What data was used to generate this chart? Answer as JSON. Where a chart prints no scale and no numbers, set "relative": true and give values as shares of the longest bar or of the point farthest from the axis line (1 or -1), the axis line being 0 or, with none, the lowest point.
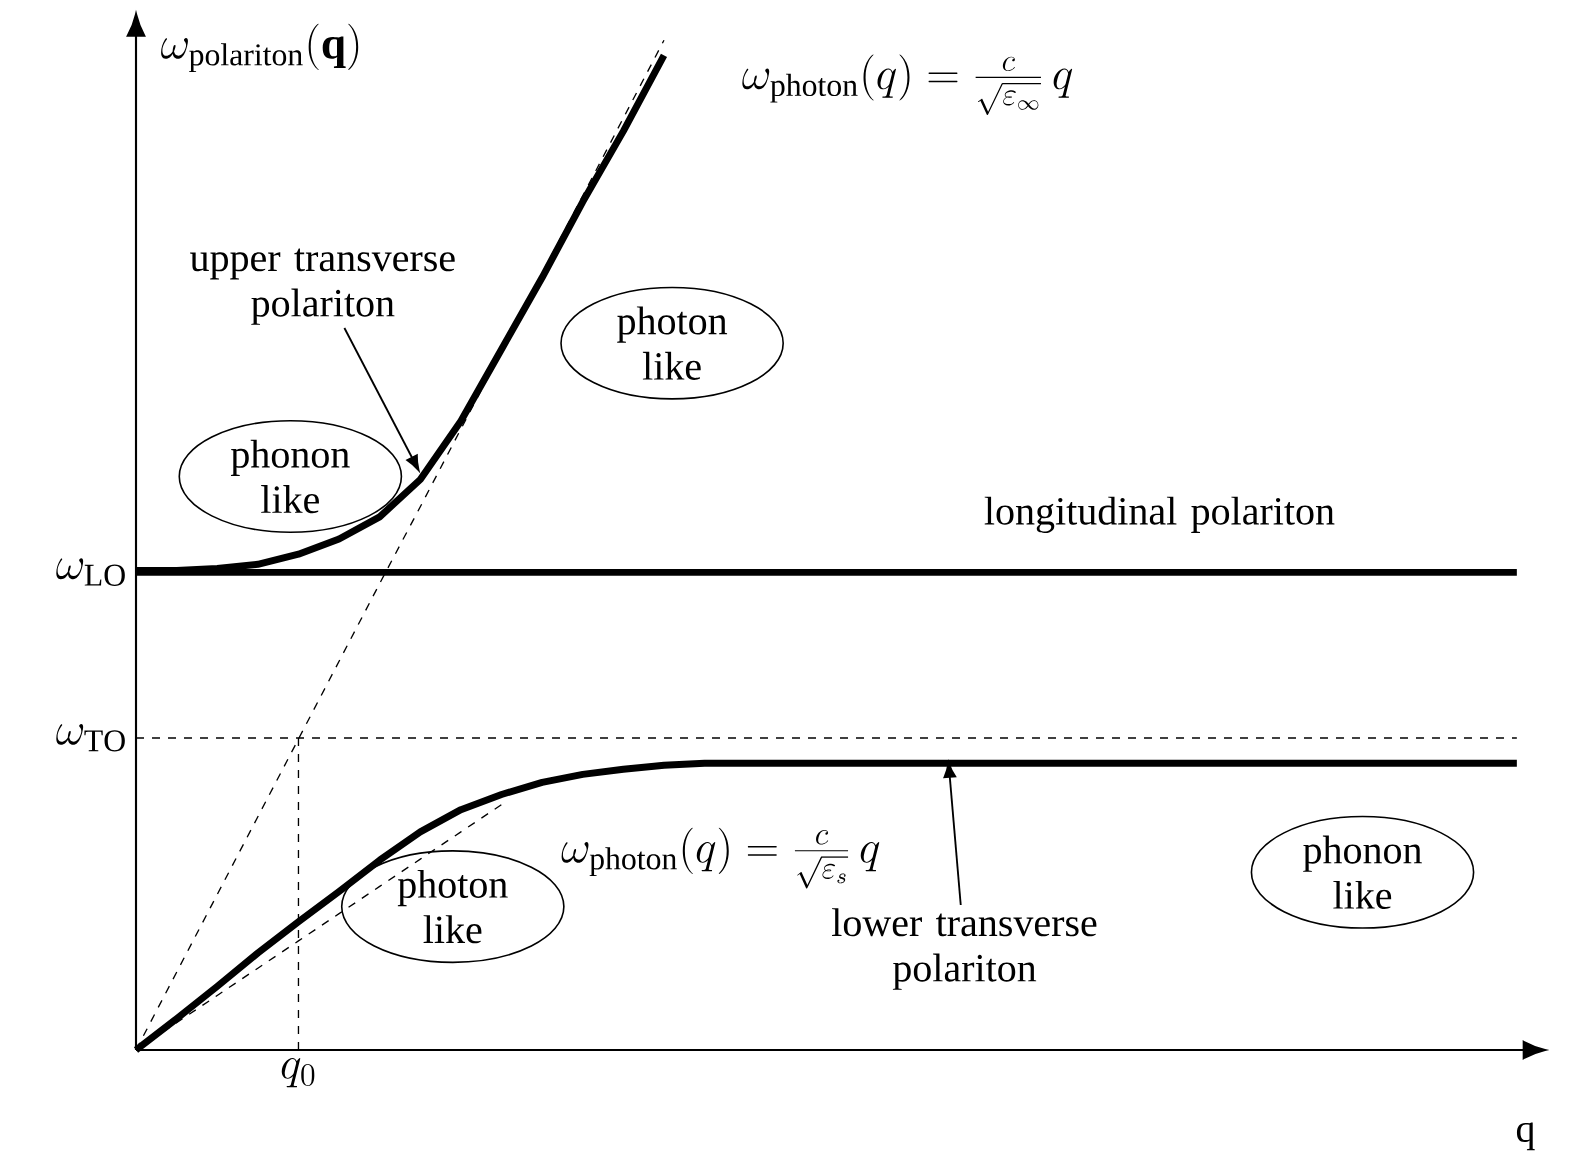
{
  "chart_data": {
    "type": "line",
    "relative": true,
    "xlabel": "q",
    "ylabel": "\\omega_{\\mathrm{polariton}}(\\mathbf{q})",
    "categories": [
      null,
      null,
      null,
      null,
      null,
      null,
      null,
      null,
      null,
      null,
      null,
      null,
      null,
      null,
      null,
      null,
      null,
      null,
      null,
      null,
      null,
      null,
      null,
      null,
      null,
      null,
      null,
      null,
      null,
      null,
      null,
      null,
      null,
      null,
      null
    ],
    "series": [
      {
        "color": "#000000",
        "line_style": "solid",
        "values": [
          0.475,
          0.475,
          0.477,
          0.481,
          0.491,
          0.506,
          0.528,
          0.565,
          0.623,
          0.694,
          0.765,
          0.84,
          0.91,
          0.985,
          null,
          null,
          null,
          null,
          null,
          null,
          null,
          null,
          null,
          null,
          null,
          null,
          null,
          null,
          null,
          null,
          null,
          null,
          null,
          null,
          null
        ]
      },
      {
        "color": "#000000",
        "line_style": "solid",
        "values": [
          0.473,
          0.473,
          0.473,
          0.473,
          0.473,
          0.473,
          0.473,
          0.473,
          0.473,
          0.473,
          0.473,
          0.473,
          0.473,
          0.473,
          0.473,
          0.473,
          0.473,
          0.473,
          0.473,
          0.473,
          0.473,
          0.473,
          0.473,
          0.473,
          0.473,
          0.473,
          0.473,
          0.473,
          0.473,
          0.473,
          0.473,
          0.473,
          0.473,
          0.473,
          0.473
        ]
      },
      {
        "color": "#000000",
        "line_style": "solid",
        "values": [
          0,
          0.031,
          0.063,
          0.096,
          0.127,
          0.157,
          0.188,
          0.216,
          0.238,
          0.253,
          0.265,
          0.273,
          0.278,
          0.282,
          0.284,
          0.284,
          0.284,
          0.284,
          0.284,
          0.284,
          0.284,
          0.284,
          0.284,
          0.284,
          0.284,
          0.284,
          0.284,
          0.284,
          0.284,
          0.284,
          0.284,
          0.284,
          0.284,
          0.284,
          0.284
        ]
      },
      {
        "color": "#000000",
        "line_style": "dashed",
        "values": [
          0,
          0.077,
          0.154,
          0.231,
          0.308,
          0.385,
          0.462,
          0.538,
          0.615,
          0.692,
          0.769,
          0.846,
          0.923,
          1,
          null,
          null,
          null,
          null,
          null,
          null,
          null,
          null,
          null,
          null,
          null,
          null,
          null,
          null,
          null,
          null,
          null,
          null,
          null,
          null,
          null
        ]
      },
      {
        "color": "#000000",
        "line_style": "dashed",
        "values": [
          0,
          0.027,
          0.054,
          0.081,
          0.108,
          0.135,
          0.162,
          0.189,
          0.216,
          0.243,
          null,
          null,
          null,
          null,
          null,
          null,
          null,
          null,
          null,
          null,
          null,
          null,
          null,
          null,
          null,
          null,
          null,
          null,
          null,
          null,
          null,
          null,
          null,
          null,
          null
        ]
      }
    ],
    "ref_lines": [
      {
        "axis": "y",
        "value": 0.309,
        "line_style": "dashed",
        "label": "\\omega_{\\mathrm{TO}}"
      }
    ],
    "annotations": [
      "upper transverse polariton",
      "lower transverse polariton",
      "longitudinal polariton",
      "phonon like",
      "photon like",
      "photon like",
      "phonon like",
      "\\omega_{\\mathrm{photon}}(q)=\\frac{c}{\\sqrt{\\varepsilon_\\infty}}\\,q",
      "\\omega_{\\mathrm{photon}}(q)=\\frac{c}{\\sqrt{\\varepsilon_s}}\\,q",
      "\\omega_{\\mathrm{LO}}",
      "q_0"
    ]
  }
}
